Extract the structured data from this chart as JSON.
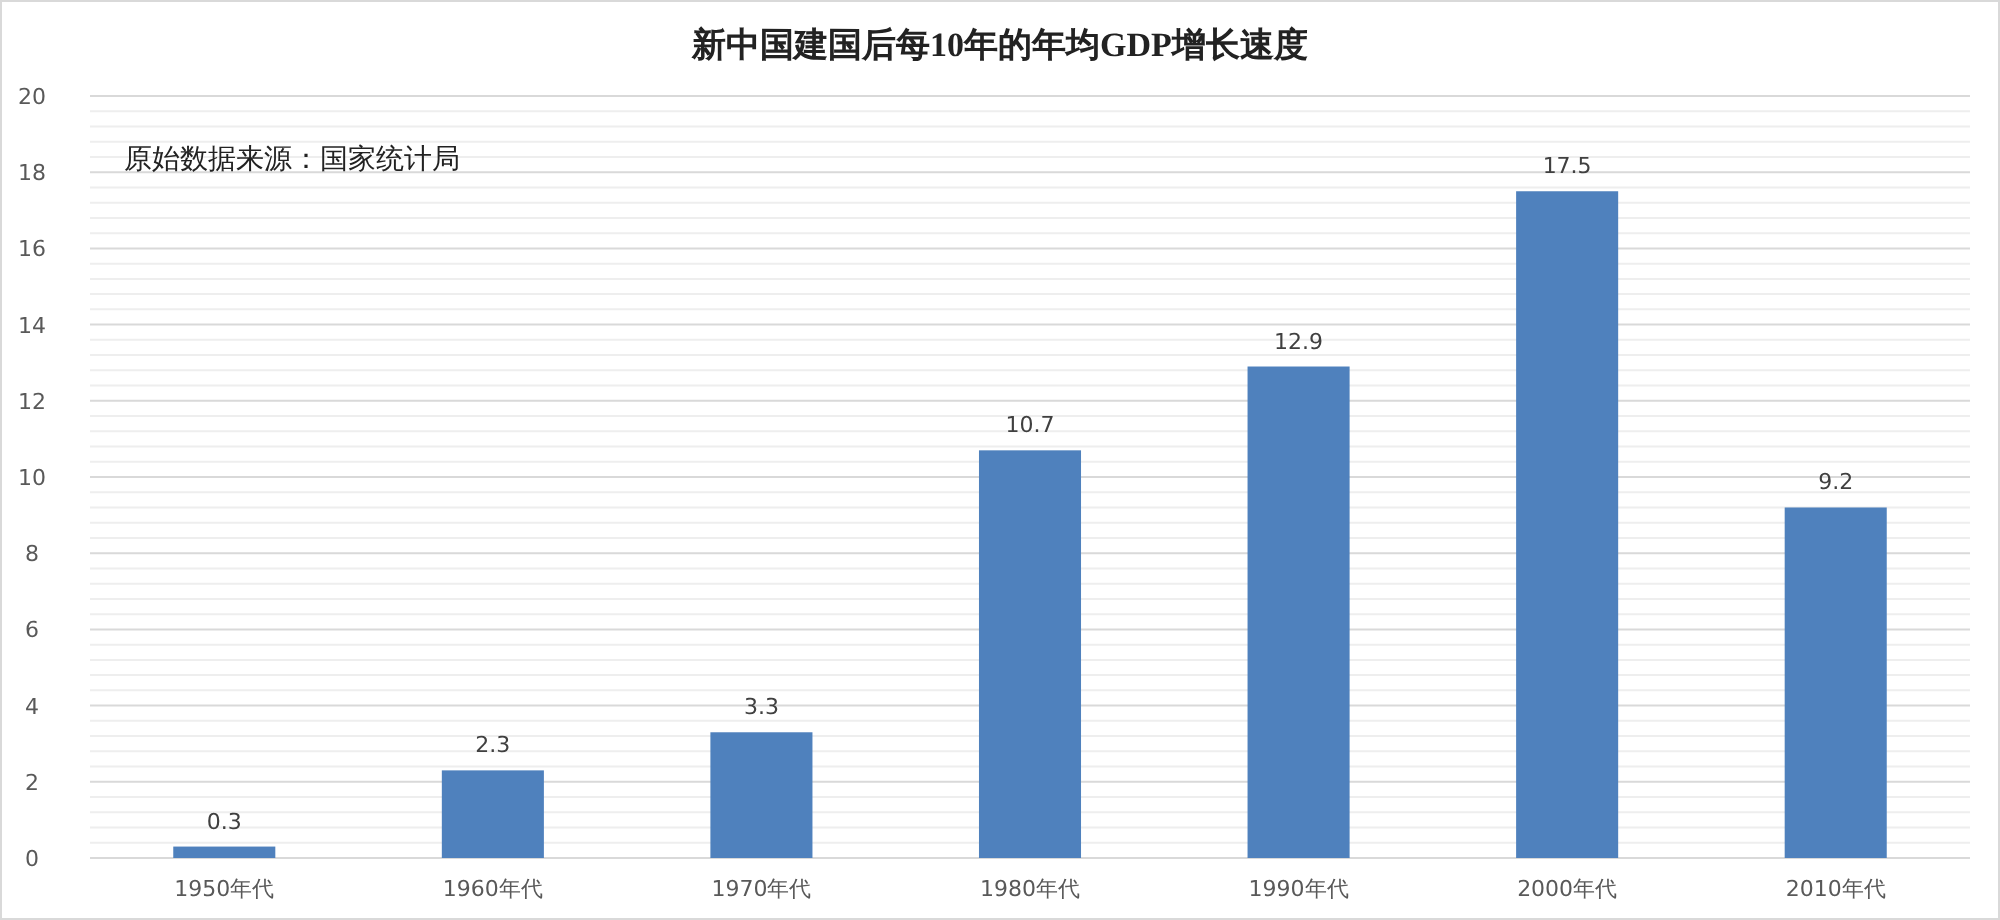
{
  "chart_data": {
    "type": "bar",
    "title": "新中国建国后每10年的年均GDP增长速度",
    "categories": [
      "1950年代",
      "1960年代",
      "1970年代",
      "1980年代",
      "1990年代",
      "2000年代",
      "2010年代"
    ],
    "values": [
      0.3,
      2.3,
      3.3,
      10.7,
      12.9,
      17.5,
      9.2
    ],
    "color": "#4f81bd",
    "ylim": [
      0,
      20
    ],
    "yticks": [
      0,
      2,
      4,
      6,
      8,
      10,
      12,
      14,
      16,
      18,
      20
    ],
    "grid": "y",
    "data_labels": true,
    "annotations": [
      "原始数据来源：国家统计局"
    ]
  }
}
